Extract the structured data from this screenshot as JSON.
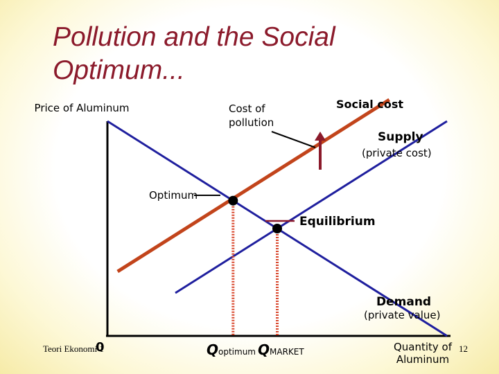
{
  "title": "Pollution and the Social Optimum...",
  "footer": {
    "source": "Teori Ekonomi 1",
    "page": "12"
  },
  "chart_data": {
    "type": "line",
    "ylabel": "Price of Aluminum",
    "xlabel": "Quantity of Aluminum",
    "origin_label": "0",
    "series": [
      {
        "name": "Demand",
        "sublabel": "(private value)",
        "color": "#1f1f9e",
        "points": [
          [
            0,
            100
          ],
          [
            100,
            0
          ]
        ]
      },
      {
        "name": "Supply",
        "sublabel": "(private cost)",
        "color": "#1f1f9e",
        "points": [
          [
            20,
            20
          ],
          [
            100,
            100
          ]
        ]
      },
      {
        "name": "Social cost",
        "sublabel": "",
        "color": "#c2441b",
        "points": [
          [
            3,
            30
          ],
          [
            83,
            110
          ]
        ]
      }
    ],
    "markers": [
      {
        "name": "Optimum",
        "x": 37,
        "y": 63,
        "axis_label": "Q",
        "axis_sub": "optimum"
      },
      {
        "name": "Equilibrium",
        "x": 50,
        "y": 50,
        "axis_label": "Q",
        "axis_sub": "MARKET"
      }
    ],
    "annotations": {
      "cost_of_pollution": "Cost of pollution"
    },
    "colors": {
      "title": "#8b1a2b",
      "arrow": "#8b1a2b",
      "dotted": "#d9492f"
    }
  }
}
